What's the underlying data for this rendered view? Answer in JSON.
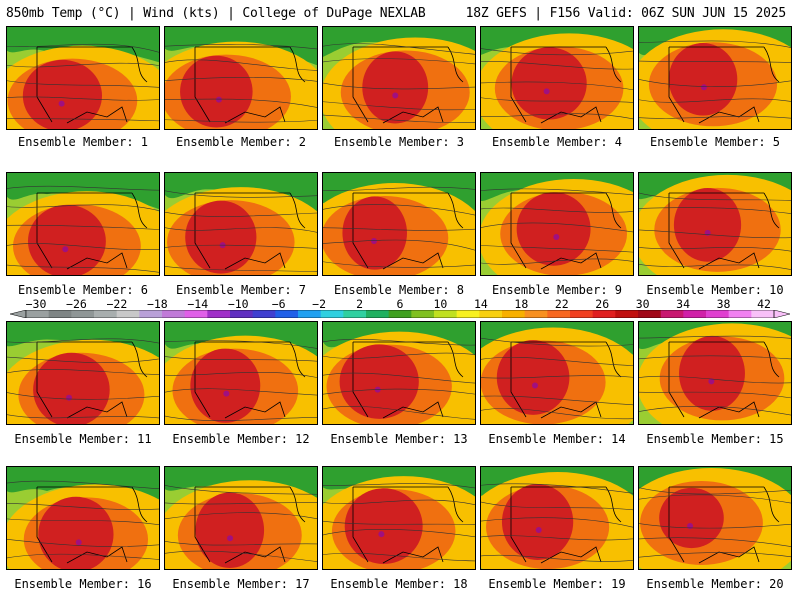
{
  "header": {
    "left": "850mb Temp (°C) | Wind (kts) | College of DuPage NEXLAB",
    "right": "18Z GEFS | F156 Valid: 06Z SUN JUN 15 2025"
  },
  "members": [
    {
      "label": "Ensemble Member: 1"
    },
    {
      "label": "Ensemble Member: 2"
    },
    {
      "label": "Ensemble Member: 3"
    },
    {
      "label": "Ensemble Member: 4"
    },
    {
      "label": "Ensemble Member: 5"
    },
    {
      "label": "Ensemble Member: 6"
    },
    {
      "label": "Ensemble Member: 7"
    },
    {
      "label": "Ensemble Member: 8"
    },
    {
      "label": "Ensemble Member: 9"
    },
    {
      "label": "Ensemble Member: 10"
    },
    {
      "label": "Ensemble Member: 11"
    },
    {
      "label": "Ensemble Member: 12"
    },
    {
      "label": "Ensemble Member: 13"
    },
    {
      "label": "Ensemble Member: 14"
    },
    {
      "label": "Ensemble Member: 15"
    },
    {
      "label": "Ensemble Member: 16"
    },
    {
      "label": "Ensemble Member: 17"
    },
    {
      "label": "Ensemble Member: 18"
    },
    {
      "label": "Ensemble Member: 19"
    },
    {
      "label": "Ensemble Member: 20"
    }
  ],
  "colorbar": {
    "ticks": [
      "−30",
      "−26",
      "−22",
      "−18",
      "−14",
      "−10",
      "−6",
      "−2",
      "2",
      "6",
      "10",
      "14",
      "18",
      "22",
      "26",
      "30",
      "34",
      "38",
      "42"
    ],
    "colors": [
      "#9aa0a0",
      "#7f8585",
      "#8f9696",
      "#a8aeae",
      "#c8c8c8",
      "#b9a0d8",
      "#c07ad8",
      "#e060e8",
      "#a030c8",
      "#6030c0",
      "#4040d0",
      "#2060e8",
      "#20a0f0",
      "#30d0e0",
      "#30d0a0",
      "#20b060",
      "#40a020",
      "#80c020",
      "#c0e020",
      "#f8f020",
      "#f8d010",
      "#f8b000",
      "#f89020",
      "#f86820",
      "#f04020",
      "#e02020",
      "#c01010",
      "#a00818",
      "#c81870",
      "#d020a8",
      "#e040d0",
      "#f080f0",
      "#f8c0f8"
    ]
  },
  "map_colors": {
    "cool": "#2fa02f",
    "mild": "#9acd32",
    "warm": "#f8c000",
    "hot": "#f07010",
    "hottest": "#d02020",
    "peak": "#a01080"
  }
}
